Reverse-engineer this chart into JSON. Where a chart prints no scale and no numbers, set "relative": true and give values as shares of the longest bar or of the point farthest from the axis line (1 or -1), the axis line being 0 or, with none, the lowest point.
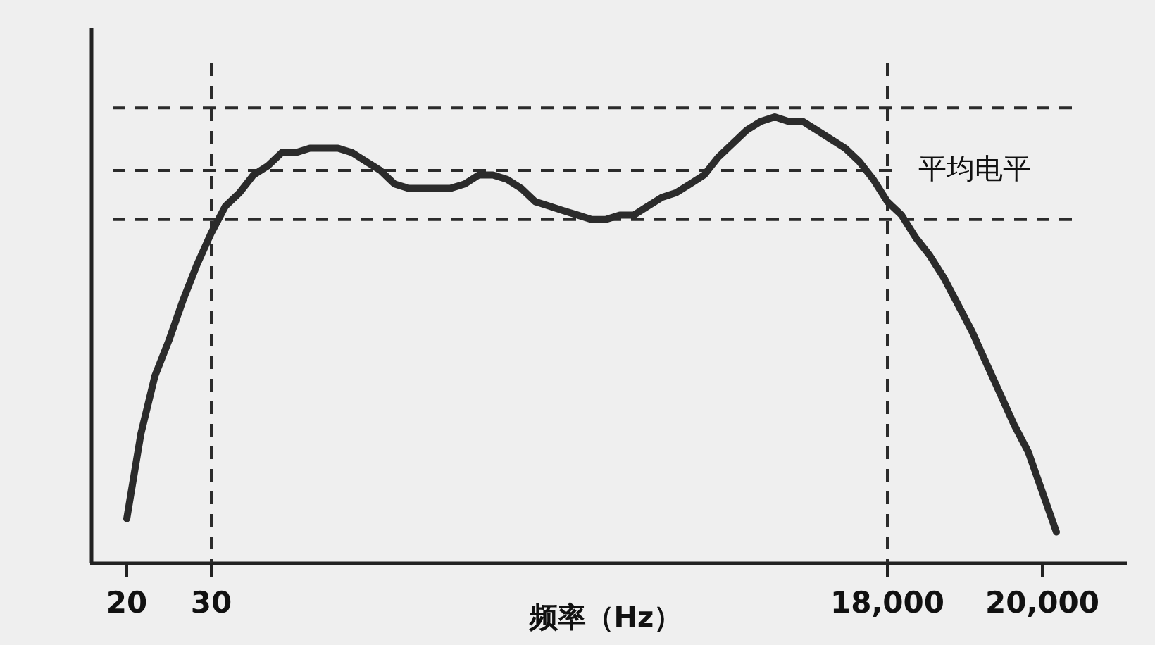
{
  "chart_data": {
    "type": "line",
    "xlabel": "频率（Hz）",
    "relative": true,
    "categories": [
      "20",
      null,
      null,
      null,
      null,
      null,
      "30",
      null,
      null,
      null,
      null,
      null,
      null,
      null,
      null,
      null,
      null,
      null,
      null,
      null,
      null,
      null,
      null,
      null,
      null,
      null,
      null,
      null,
      null,
      null,
      null,
      null,
      null,
      null,
      null,
      null,
      null,
      null,
      null,
      null,
      null,
      null,
      null,
      null,
      null,
      null,
      null,
      null,
      null,
      null,
      null,
      null,
      null,
      null,
      "18,000",
      null,
      null,
      null,
      null,
      null,
      null,
      null,
      null,
      null,
      null,
      "20,000",
      null
    ],
    "series": [
      {
        "color": "#2b2b2b",
        "values": [
          0.1,
          0.29,
          0.42,
          0.5,
          0.59,
          0.67,
          0.74,
          0.8,
          0.83,
          0.87,
          0.89,
          0.92,
          0.92,
          0.93,
          0.93,
          0.93,
          0.92,
          0.9,
          0.88,
          0.85,
          0.84,
          0.84,
          0.84,
          0.84,
          0.85,
          0.87,
          0.87,
          0.86,
          0.84,
          0.81,
          0.8,
          0.79,
          0.78,
          0.77,
          0.77,
          0.78,
          0.78,
          0.8,
          0.82,
          0.83,
          0.85,
          0.87,
          0.91,
          0.94,
          0.97,
          0.99,
          1,
          0.99,
          0.99,
          0.97,
          0.95,
          0.93,
          0.9,
          0.86,
          0.81,
          0.78,
          0.73,
          0.69,
          0.64,
          0.58,
          0.52,
          0.45,
          0.38,
          0.31,
          0.25,
          0.16,
          0.07
        ]
      }
    ],
    "ref_lines": [
      {
        "axis": "y",
        "value": 1.02,
        "line_style": "dashed",
        "color": "#2b2b2b"
      },
      {
        "axis": "y",
        "value": 0.88,
        "label": "平均电平",
        "line_style": "dashed",
        "color": "#2b2b2b"
      },
      {
        "axis": "y",
        "value": 0.77,
        "line_style": "dashed",
        "color": "#2b2b2b"
      },
      {
        "axis": "x",
        "value": "30",
        "line_style": "dashed",
        "color": "#2b2b2b"
      },
      {
        "axis": "x",
        "value": "18,000",
        "line_style": "dashed",
        "color": "#2b2b2b"
      }
    ]
  }
}
